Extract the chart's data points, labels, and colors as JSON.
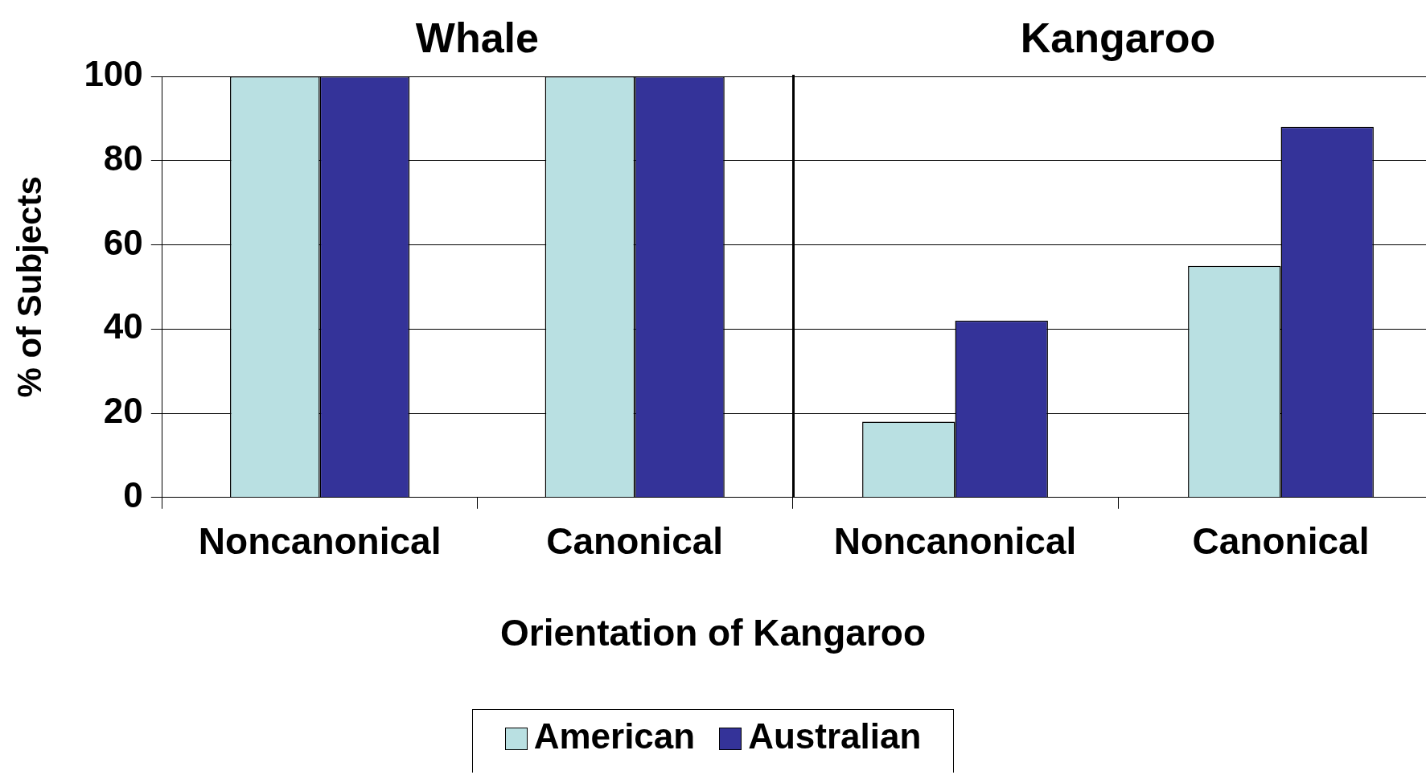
{
  "chart_data": [
    {
      "type": "bar",
      "title": "Whale",
      "xlabel": "Orientation of Kangaroo",
      "ylabel": "% of Subjects",
      "categories": [
        "Noncanonical",
        "Canonical"
      ],
      "series": [
        {
          "name": "American",
          "color": "#b9e0e2",
          "values": [
            100,
            100
          ]
        },
        {
          "name": "Australian",
          "color": "#343399",
          "values": [
            100,
            100
          ]
        }
      ],
      "ylim": [
        0,
        100
      ],
      "yticks": [
        0,
        20,
        40,
        60,
        80,
        100
      ],
      "grid": "y",
      "legend": "bottom"
    },
    {
      "type": "bar",
      "title": "Kangaroo",
      "categories": [
        "Noncanonical",
        "Canonical"
      ],
      "series": [
        {
          "color": "#b9e0e2",
          "values": [
            18,
            55
          ]
        },
        {
          "color": "#343399",
          "values": [
            42,
            88
          ]
        }
      ],
      "ylim": [
        0,
        100
      ],
      "yticks": [
        0,
        20,
        40,
        60,
        80,
        100
      ],
      "grid": "y",
      "tick_labels": "x"
    }
  ]
}
